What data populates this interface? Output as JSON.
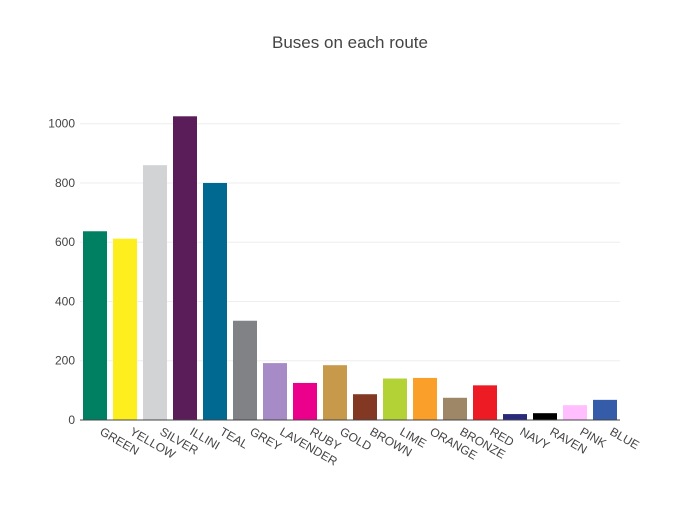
{
  "chart_data": {
    "type": "bar",
    "title": "Buses on each route",
    "xlabel": "",
    "ylabel": "",
    "categories": [
      "GREEN",
      "YELLOW",
      "SILVER",
      "ILLINI",
      "TEAL",
      "GREY",
      "LAVENDER",
      "RUBY",
      "GOLD",
      "BROWN",
      "LIME",
      "ORANGE",
      "BRONZE",
      "RED",
      "NAVY",
      "RAVEN",
      "PINK",
      "BLUE"
    ],
    "values": [
      637,
      612,
      860,
      1025,
      800,
      335,
      192,
      125,
      185,
      87,
      140,
      142,
      75,
      117,
      20,
      23,
      50,
      68
    ],
    "colors": [
      "#008063",
      "#FCEE1F",
      "#D1D3D4",
      "#5A1D5A",
      "#006991",
      "#808285",
      "#A78BC6",
      "#EB008B",
      "#C7994A",
      "#823822",
      "#B2D235",
      "#F99F2A",
      "#9E8766",
      "#ED1C24",
      "#2A2A7C",
      "#000000",
      "#FFBFFF",
      "#355CA8"
    ],
    "ylim": [
      0,
      1080
    ],
    "yticks": [
      0,
      200,
      400,
      600,
      800,
      1000
    ],
    "grid": true,
    "legend": "none"
  }
}
